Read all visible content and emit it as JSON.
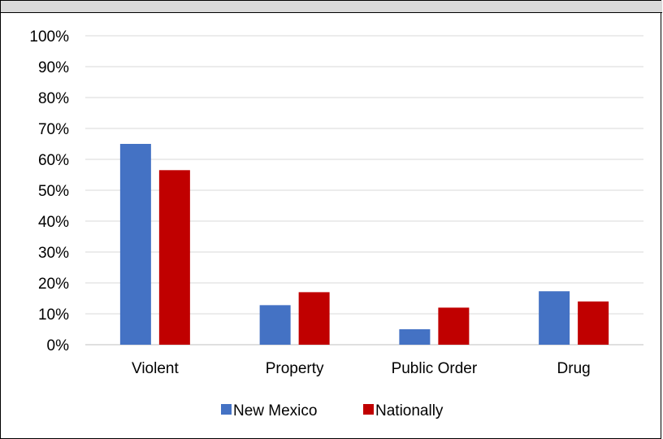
{
  "chart_data": {
    "type": "bar",
    "categories": [
      "Violent",
      "Property",
      "Public Order",
      "Drug"
    ],
    "series": [
      {
        "name": "New Mexico",
        "values": [
          0.65,
          0.128,
          0.05,
          0.173
        ],
        "color": "#4472C4"
      },
      {
        "name": "Nationally",
        "values": [
          0.565,
          0.17,
          0.12,
          0.14
        ],
        "color": "#C00000"
      }
    ],
    "yticks": [
      "0%",
      "10%",
      "20%",
      "30%",
      "40%",
      "50%",
      "60%",
      "70%",
      "80%",
      "90%",
      "100%"
    ],
    "ylim": [
      0,
      1
    ],
    "grid": true,
    "legend_position": "bottom"
  }
}
